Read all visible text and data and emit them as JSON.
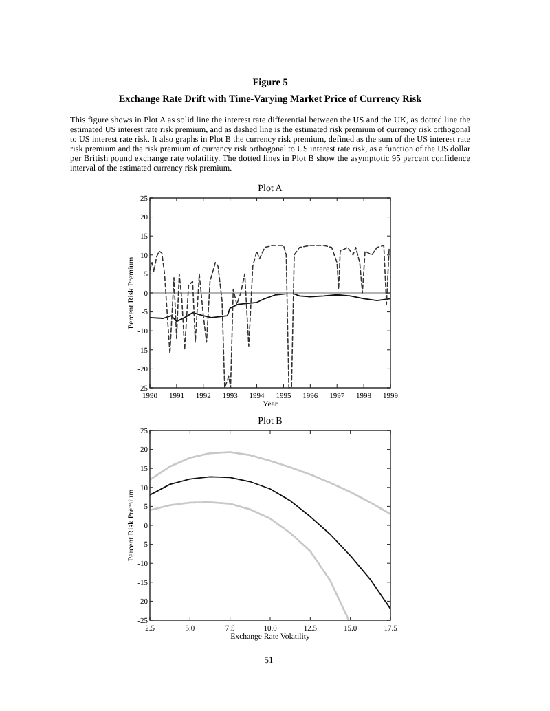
{
  "chart_data": [
    {
      "type": "other",
      "title": "Figure 5",
      "subtitle": "Exchange Rate Drift with Time-Varying Market Price of Currency Risk",
      "annotations": [
        "This figure shows in Plot A as solid line the interest rate differential between the US and the UK, as dotted line the estimated US interest rate risk premium, and as dashed line is the estimated risk premium of currency risk orthogonal to US interest rate risk. It also graphs in Plot B the currency risk premium, defined as the sum of the US interest rate risk premium and the risk premium of currency risk orthogonal to US interest rate risk, as a function of the US dollar per British pound exchange rate volatility. The dotted lines in Plot B show the asymptotic 95 percent confidence interval of the estimated currency risk premium."
      ]
    },
    {
      "type": "line",
      "title": "Plot A",
      "xlabel": "Year",
      "ylabel": "Percent Risk Premium",
      "xlim": [
        1990,
        1999
      ],
      "ylim": [
        -25,
        25
      ],
      "xticks": [
        1990,
        1991,
        1992,
        1993,
        1994,
        1995,
        1996,
        1997,
        1998,
        1999
      ],
      "yticks": [
        -25,
        -20,
        -15,
        -10,
        -5,
        0,
        5,
        10,
        15,
        20,
        25
      ],
      "series": [
        {
          "color": "#111111",
          "line_style": "solid",
          "x": [
            1990,
            1990.5,
            1990.8,
            1991,
            1991.3,
            1991.6,
            1992,
            1992.3,
            1992.7,
            1992.9,
            1993,
            1993.3,
            1993.6,
            1994,
            1994.3,
            1994.7,
            1995,
            1995.3,
            1995.6,
            1996,
            1996.5,
            1997,
            1997.5,
            1998,
            1998.5,
            1999
          ],
          "values": [
            -6.5,
            -6.7,
            -6,
            -7.5,
            -6.5,
            -5.2,
            -6,
            -6.5,
            -6.2,
            -6,
            -4,
            -3,
            -2.8,
            -2.5,
            -1.5,
            -0.5,
            -0.3,
            0,
            -0.8,
            -1,
            -0.8,
            -0.5,
            -0.8,
            -1.5,
            -2,
            -1.5
          ]
        },
        {
          "color": "#b4b4b4",
          "line_style": "dotted",
          "x": [
            1990,
            1999
          ],
          "values": [
            0,
            0
          ]
        },
        {
          "color": "#333333",
          "line_style": "dashed",
          "x": [
            1990,
            1990.08,
            1990.15,
            1990.25,
            1990.35,
            1990.45,
            1990.55,
            1990.75,
            1990.9,
            1991,
            1991.1,
            1991.2,
            1991.3,
            1991.45,
            1991.6,
            1991.7,
            1991.85,
            1992,
            1992.12,
            1992.25,
            1992.45,
            1992.55,
            1992.7,
            1992.8,
            1992.95,
            1993.02,
            1993.12,
            1993.25,
            1993.4,
            1993.55,
            1993.7,
            1993.85,
            1994,
            1994.1,
            1994.3,
            1994.6,
            1995,
            1995.1,
            1995.2,
            1995.3,
            1995.4,
            1995.6,
            1996,
            1996.5,
            1996.8,
            1997,
            1997.06,
            1997.12,
            1997.4,
            1997.6,
            1997.7,
            1997.85,
            1997.95,
            1998.05,
            1998.3,
            1998.5,
            1998.75,
            1998.85,
            1998.95,
            1999
          ],
          "values": [
            6,
            8,
            5.5,
            9.5,
            11,
            10.5,
            5,
            -16,
            4,
            -12,
            5,
            -2,
            -15,
            2,
            3,
            -13,
            5,
            -6,
            -13,
            3,
            8,
            7,
            -2,
            -25,
            -22,
            -25,
            1,
            -3,
            0,
            5,
            -14,
            7,
            11,
            9,
            12,
            12.5,
            12.5,
            10,
            -25,
            -25,
            10,
            12,
            12.5,
            12.5,
            12,
            8,
            1,
            11,
            12,
            10,
            12,
            8,
            0,
            11,
            10,
            12,
            12.5,
            -3,
            11.5,
            11
          ]
        }
      ]
    },
    {
      "type": "line",
      "title": "Plot B",
      "xlabel": "Exchange Rate Volatility",
      "ylabel": "Percent Risk Premium",
      "xlim": [
        2.5,
        17.5
      ],
      "ylim": [
        -25,
        25
      ],
      "xticks": [
        2.5,
        {
          "value": 5,
          "label": "5.0"
        },
        7.5,
        {
          "value": 10,
          "label": "10.0"
        },
        12.5,
        {
          "value": 15,
          "label": "15.0"
        },
        17.5
      ],
      "yticks": [
        -25,
        -20,
        -15,
        -10,
        -5,
        0,
        5,
        10,
        15,
        20,
        25
      ],
      "series": [
        {
          "color": "#111111",
          "line_style": "solid",
          "x": [
            2.5,
            3.75,
            5,
            6.25,
            7.5,
            8.75,
            10,
            11.25,
            12.5,
            13.75,
            15,
            16.25,
            17.5
          ],
          "values": [
            8,
            10.8,
            12.2,
            12.8,
            12.6,
            11.5,
            9.6,
            6.5,
            2.3,
            -2.4,
            -8,
            -14.3,
            -22
          ]
        },
        {
          "color": "#c8c8c8",
          "line_style": "dotted",
          "x": [
            2.5,
            3.75,
            5,
            6.25,
            7.5,
            8.75,
            10,
            11.25,
            12.5,
            13.75,
            15,
            16.25,
            17.5
          ],
          "values": [
            12,
            15.5,
            17.8,
            19,
            19.3,
            18.5,
            17,
            15.3,
            13.4,
            11.2,
            8.8,
            6,
            3
          ]
        },
        {
          "color": "#c8c8c8",
          "line_style": "dotted",
          "x": [
            2.5,
            3.75,
            5,
            6.25,
            7.5,
            8.75,
            10,
            11.25,
            12.5,
            13.75,
            14.9
          ],
          "values": [
            4,
            5.3,
            6,
            6.1,
            5.7,
            4.2,
            1.8,
            -2,
            -6.8,
            -14.6,
            -25
          ]
        }
      ],
      "annotations": [
        "51"
      ]
    }
  ]
}
